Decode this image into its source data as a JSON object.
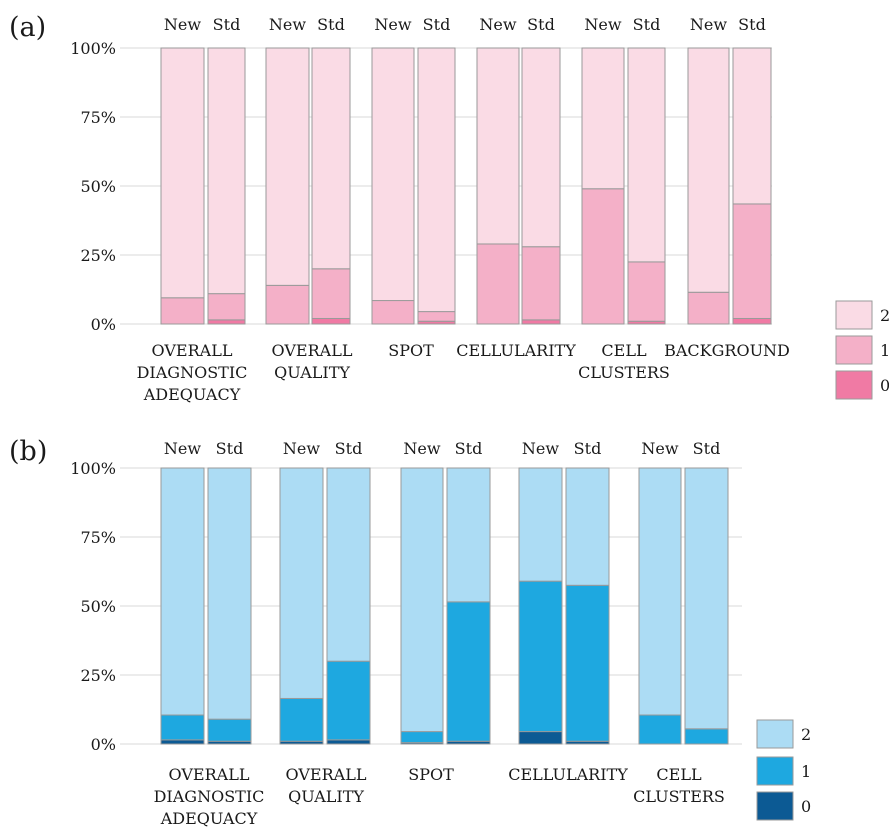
{
  "chart_data": [
    {
      "type": "bar",
      "stacked": true,
      "panel_label": "(a)",
      "categories": [
        [
          "OVERALL",
          "DIAGNOSTIC",
          "ADEQUACY"
        ],
        [
          "OVERALL",
          "QUALITY"
        ],
        [
          "SPOT"
        ],
        [
          "CELLULARITY"
        ],
        [
          "CELL",
          "CLUSTERS"
        ],
        [
          "BACKGROUND"
        ]
      ],
      "subgroups": [
        "New",
        "Std"
      ],
      "y_ticks": [
        "0%",
        "25%",
        "50%",
        "75%",
        "100%"
      ],
      "ylim": [
        0,
        100
      ],
      "grid": true,
      "legend_position": "right-bottom",
      "series": [
        {
          "name": "0",
          "color": "#f07aa4",
          "values": [
            [
              0,
              1.5
            ],
            [
              0,
              2
            ],
            [
              0,
              1
            ],
            [
              0,
              1.5
            ],
            [
              0,
              1
            ],
            [
              0,
              2
            ]
          ]
        },
        {
          "name": "1",
          "color": "#f4b0c8",
          "values": [
            [
              9.5,
              9.5
            ],
            [
              14,
              18
            ],
            [
              8.5,
              3.5
            ],
            [
              29,
              26.5
            ],
            [
              49,
              21.5
            ],
            [
              11.5,
              41.5
            ]
          ]
        },
        {
          "name": "2",
          "color": "#fadbe5",
          "values": [
            [
              90.5,
              89
            ],
            [
              86,
              80
            ],
            [
              91.5,
              95.5
            ],
            [
              71,
              72
            ],
            [
              51,
              77.5
            ],
            [
              88.5,
              56.5
            ]
          ]
        }
      ]
    },
    {
      "type": "bar",
      "stacked": true,
      "panel_label": "(b)",
      "categories": [
        [
          "OVERALL",
          "DIAGNOSTIC",
          "ADEQUACY"
        ],
        [
          "OVERALL",
          "QUALITY"
        ],
        [
          "SPOT"
        ],
        [
          "CELLULARITY"
        ],
        [
          "CELL",
          "CLUSTERS"
        ]
      ],
      "subgroups": [
        "New",
        "Std"
      ],
      "y_ticks": [
        "0%",
        "25%",
        "50%",
        "75%",
        "100%"
      ],
      "ylim": [
        0,
        100
      ],
      "grid": true,
      "legend_position": "right-bottom",
      "series": [
        {
          "name": "0",
          "color": "#0c5a94",
          "values": [
            [
              1.5,
              1
            ],
            [
              1,
              1.5
            ],
            [
              0.5,
              1
            ],
            [
              4.5,
              1
            ],
            [
              0,
              0
            ]
          ]
        },
        {
          "name": "1",
          "color": "#1ea8e0",
          "values": [
            [
              9,
              8
            ],
            [
              15.5,
              28.5
            ],
            [
              4,
              50.5
            ],
            [
              54.5,
              56.5
            ],
            [
              10.5,
              5.5
            ]
          ]
        },
        {
          "name": "2",
          "color": "#acdcf4",
          "values": [
            [
              89.5,
              91
            ],
            [
              83.5,
              70
            ],
            [
              95.5,
              48.5
            ],
            [
              41,
              42.5
            ],
            [
              89.5,
              94.5
            ]
          ]
        }
      ]
    }
  ]
}
